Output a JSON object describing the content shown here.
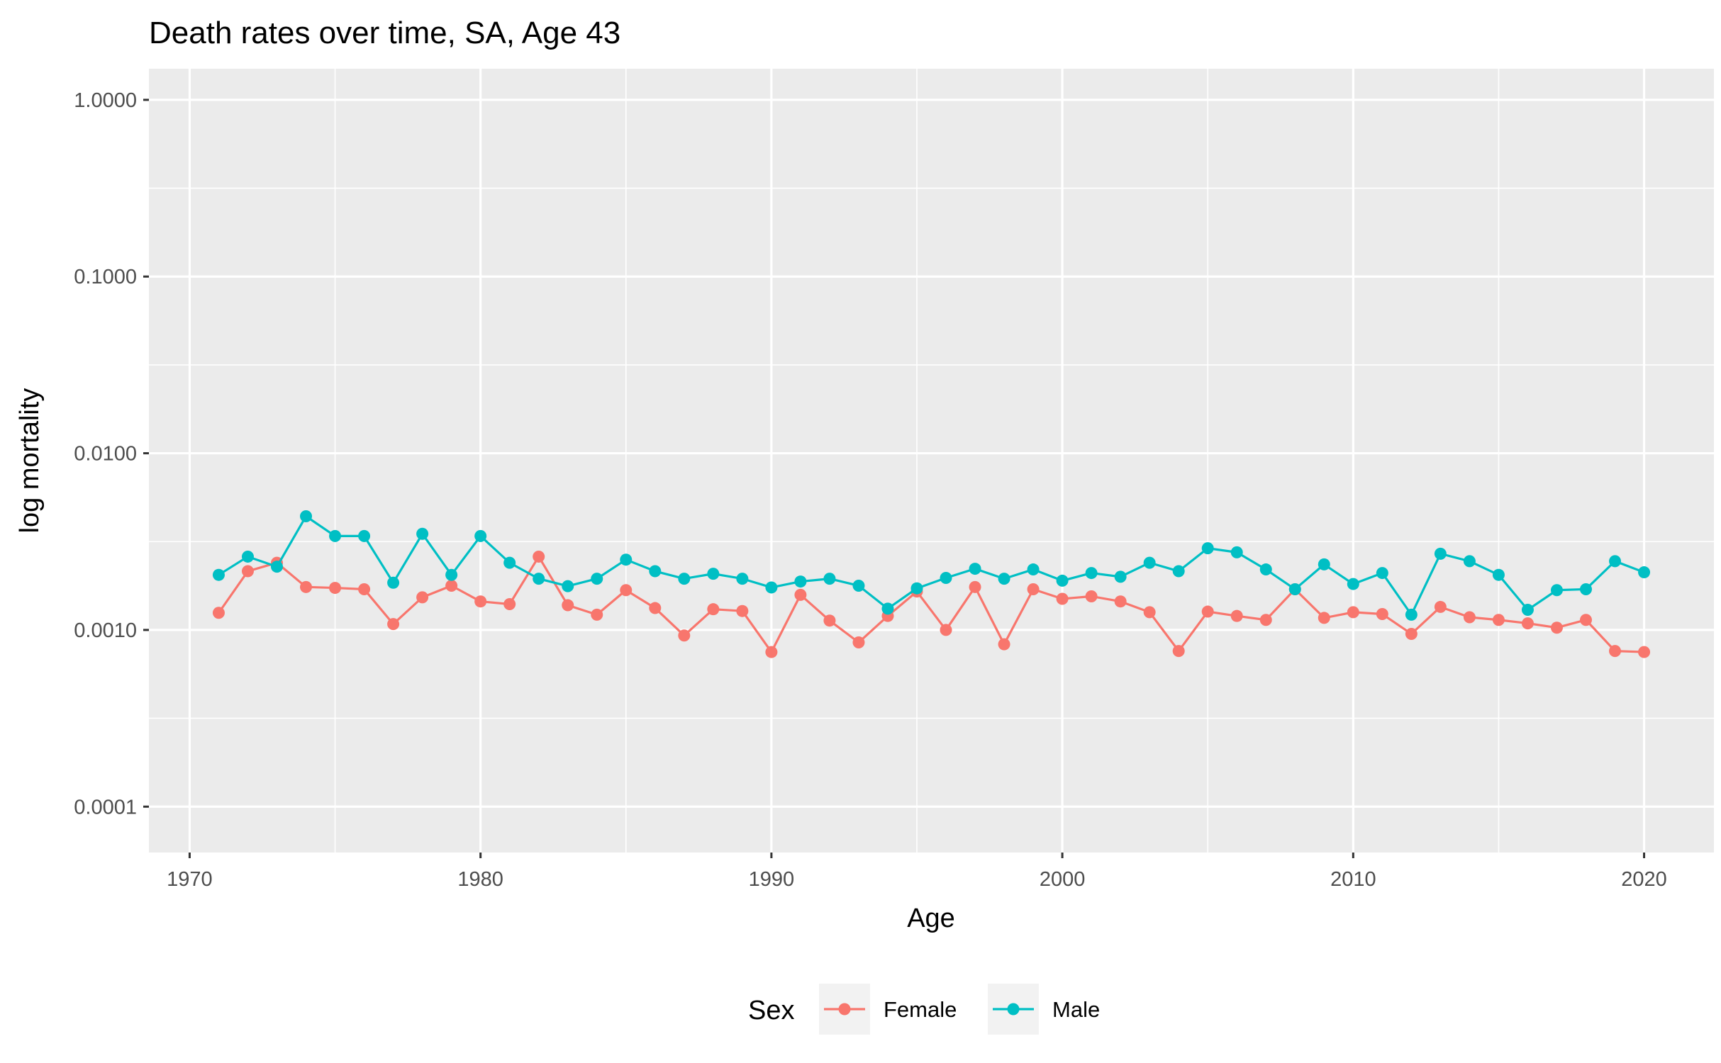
{
  "chart_data": {
    "type": "line",
    "title": "Death rates over time, SA, Age 43",
    "xlabel": "Age",
    "ylabel": "log mortality",
    "x_scale": "linear",
    "y_scale": "log10",
    "xlim": [
      1968.6,
      2022.4
    ],
    "ylim": [
      5.5e-05,
      1.5
    ],
    "x_ticks": [
      1970,
      1980,
      1990,
      2000,
      2010,
      2020
    ],
    "x_tick_labels": [
      "1970",
      "1980",
      "1990",
      "2000",
      "2010",
      "2020"
    ],
    "y_ticks": [
      1,
      0.1,
      0.01,
      0.001,
      0.0001
    ],
    "y_tick_labels": [
      "1.0000",
      "0.1000",
      "0.0100",
      "0.0010",
      "0.0001"
    ],
    "grid": true,
    "legend_position": "bottom",
    "legend_title": "Sex",
    "x": [
      1971,
      1972,
      1973,
      1974,
      1975,
      1976,
      1977,
      1978,
      1979,
      1980,
      1981,
      1982,
      1983,
      1984,
      1985,
      1986,
      1987,
      1988,
      1989,
      1990,
      1991,
      1992,
      1993,
      1994,
      1995,
      1996,
      1997,
      1998,
      1999,
      2000,
      2001,
      2002,
      2003,
      2004,
      2005,
      2006,
      2007,
      2008,
      2009,
      2010,
      2011,
      2012,
      2013,
      2014,
      2015,
      2016,
      2017,
      2018,
      2019,
      2020
    ],
    "series": [
      {
        "name": "Female",
        "color": "#F8766D",
        "values": [
          0.00125,
          0.00215,
          0.0024,
          0.00175,
          0.00173,
          0.0017,
          0.00108,
          0.00153,
          0.00178,
          0.00145,
          0.0014,
          0.0026,
          0.00138,
          0.00122,
          0.00168,
          0.00133,
          0.00093,
          0.00131,
          0.00128,
          0.00075,
          0.00158,
          0.00113,
          0.00085,
          0.0012,
          0.00165,
          0.001,
          0.00175,
          0.00083,
          0.0017,
          0.0015,
          0.00155,
          0.00145,
          0.00126,
          0.00076,
          0.00127,
          0.0012,
          0.00114,
          0.0017,
          0.00117,
          0.00126,
          0.00123,
          0.00095,
          0.00135,
          0.00118,
          0.00114,
          0.00109,
          0.00103,
          0.00114,
          0.00076,
          0.00075
        ]
      },
      {
        "name": "Male",
        "color": "#00BFC4",
        "values": [
          0.00205,
          0.0026,
          0.00228,
          0.0044,
          0.0034,
          0.0034,
          0.00185,
          0.0035,
          0.00205,
          0.0034,
          0.0024,
          0.00195,
          0.00177,
          0.00195,
          0.0025,
          0.00215,
          0.00195,
          0.00208,
          0.00195,
          0.00174,
          0.00188,
          0.00195,
          0.00178,
          0.00132,
          0.00172,
          0.00197,
          0.00222,
          0.00195,
          0.0022,
          0.0019,
          0.0021,
          0.002,
          0.0024,
          0.00215,
          0.0029,
          0.00275,
          0.0022,
          0.0017,
          0.00235,
          0.00182,
          0.0021,
          0.00122,
          0.0027,
          0.00245,
          0.00205,
          0.0013,
          0.00168,
          0.0017,
          0.00245,
          0.00212
        ]
      }
    ]
  }
}
